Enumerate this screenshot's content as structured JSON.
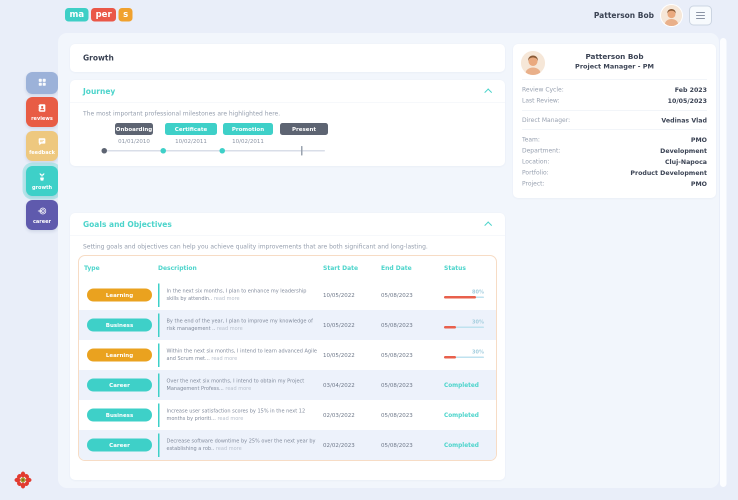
{
  "header": {
    "logo_parts": [
      {
        "text": "ma",
        "color": "#3ecfc6"
      },
      {
        "text": "per",
        "color": "#ea5748"
      },
      {
        "text": "s",
        "color": "#f0a12e"
      }
    ],
    "user_name": "Patterson Bob"
  },
  "sidebar": {
    "items": [
      {
        "id": "apps",
        "label": "",
        "icon": "grid-icon",
        "color": "#9cb2d9",
        "active": false
      },
      {
        "id": "reviews",
        "label": "reviews",
        "icon": "reviews-icon",
        "color": "#e85c45",
        "active": false
      },
      {
        "id": "feedback",
        "label": "feedback",
        "icon": "feedback-icon",
        "color": "#eec87f",
        "active": false
      },
      {
        "id": "growth",
        "label": "growth",
        "icon": "growth-icon",
        "color": "#3ed0c8",
        "active": true
      },
      {
        "id": "career",
        "label": "career",
        "icon": "career-icon",
        "color": "#5f5aad",
        "active": false
      }
    ]
  },
  "page": {
    "title": "Growth"
  },
  "journey": {
    "title": "Journey",
    "subtitle": "The most important professional milestones are highlighted here.",
    "milestones": [
      {
        "label": "Onboarding",
        "date": "01/01/2010",
        "style": "dark"
      },
      {
        "label": "Certificate",
        "date": "10/02/2011",
        "style": "teal"
      },
      {
        "label": "Promotion",
        "date": "10/02/2011",
        "style": "teal"
      },
      {
        "label": "Present",
        "date": "",
        "style": "dark"
      }
    ]
  },
  "goals": {
    "title": "Goals and Objectives",
    "subtitle": "Setting goals and objectives can help you achieve quality improvements that are both significant and long-lasting.",
    "columns": [
      "Type",
      "Description",
      "Start Date",
      "End Date",
      "Status"
    ],
    "read_more_label": "read more",
    "completed_label": "Completed",
    "rows": [
      {
        "type": "Learning",
        "type_style": "orange",
        "description": "In the next six months, I plan to enhance my leadership skills by attendin..",
        "start": "10/05/2022",
        "end": "05/08/2023",
        "status": "progress",
        "progress": 80
      },
      {
        "type": "Business",
        "type_style": "teal",
        "description": "By the end of the year, I plan to improve my knowledge of risk management ..",
        "start": "10/05/2022",
        "end": "05/08/2023",
        "status": "progress",
        "progress": 30
      },
      {
        "type": "Learning",
        "type_style": "orange",
        "description": "Within the next six months, I intend to learn advanced Agile and Scrum met...",
        "start": "10/05/2022",
        "end": "05/08/2023",
        "status": "progress",
        "progress": 30
      },
      {
        "type": "Career",
        "type_style": "teal",
        "description": "Over the next six months, I intend to obtain my Project Management Profess...",
        "start": "03/04/2022",
        "end": "05/08/2023",
        "status": "completed"
      },
      {
        "type": "Business",
        "type_style": "teal",
        "description": "Increase user satisfaction scores by 15% in the next 12 months by prioriti...",
        "start": "02/03/2022",
        "end": "05/08/2023",
        "status": "completed"
      },
      {
        "type": "Career",
        "type_style": "teal",
        "description": "Decrease software downtime by 25% over the next year by establishing a rob..",
        "start": "02/02/2023",
        "end": "05/08/2023",
        "status": "completed"
      }
    ]
  },
  "profile": {
    "name": "Patterson Bob",
    "role": "Project Manager - PM",
    "groups": [
      [
        {
          "label": "Review Cycle:",
          "value": "Feb 2023"
        },
        {
          "label": "Last Review:",
          "value": "10/05/2023"
        }
      ],
      [
        {
          "label": "Direct Manager:",
          "value": "Vedinas Vlad"
        }
      ],
      [
        {
          "label": "Team:",
          "value": "PMO"
        },
        {
          "label": "Department:",
          "value": "Development"
        },
        {
          "label": "Location:",
          "value": "Cluj-Napoca"
        },
        {
          "label": "Portfolio:",
          "value": "Product Development"
        },
        {
          "label": "Project:",
          "value": "PMO"
        }
      ]
    ]
  },
  "colors": {
    "accent_teal": "#3ed0c8",
    "accent_red": "#e85c45",
    "accent_orange": "#eaa21f",
    "pill_dark": "#5d6472",
    "progress_fill": "#e8604c",
    "progress_track": "#bfe2ef",
    "background": "#e9eef9",
    "panel": "#f2f6fc",
    "table_border": "#f7dcc5"
  }
}
